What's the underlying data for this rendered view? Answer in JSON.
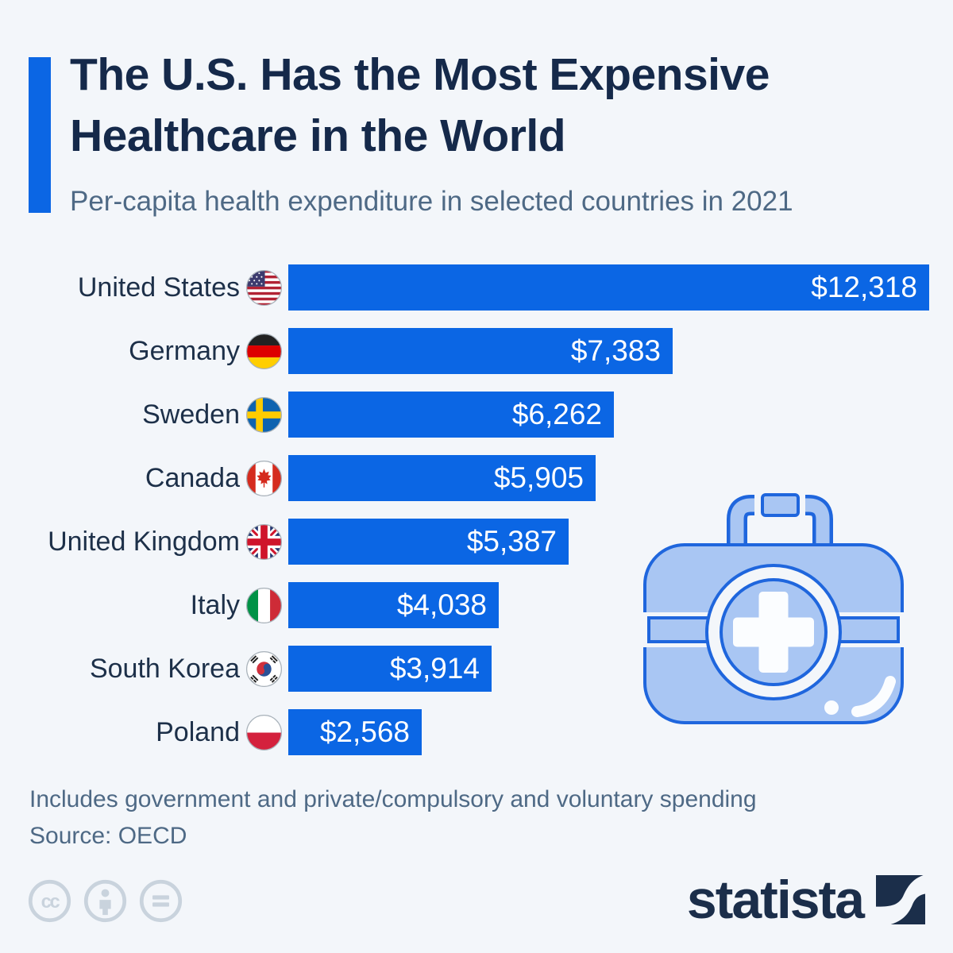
{
  "header": {
    "title": "The U.S. Has the Most Expensive Healthcare in the World",
    "subtitle": "Per-capita health expenditure in selected countries in 2021"
  },
  "chart_data": {
    "type": "bar",
    "orientation": "horizontal",
    "categories": [
      "United States",
      "Germany",
      "Sweden",
      "Canada",
      "United Kingdom",
      "Italy",
      "South Korea",
      "Poland"
    ],
    "values": [
      12318,
      7383,
      6262,
      5905,
      5387,
      4038,
      3914,
      2568
    ],
    "value_labels": [
      "$12,318",
      "$7,383",
      "$6,262",
      "$5,905",
      "$5,387",
      "$4,038",
      "$3,914",
      "$2,568"
    ],
    "flags": [
      "united-states",
      "germany",
      "sweden",
      "canada",
      "united-kingdom",
      "italy",
      "south-korea",
      "poland"
    ],
    "title": "Per-capita health expenditure in selected countries in 2021",
    "xlabel": "",
    "ylabel": "",
    "xlim": [
      0,
      12318
    ],
    "unit": "USD",
    "grid": false,
    "legend": false,
    "bar_color": "#0b66e4",
    "value_label_position": "inside-right"
  },
  "footer": {
    "note": "Includes government and private/compulsory and voluntary spending",
    "source": "Source: OECD"
  },
  "branding": {
    "logo_text": "statista",
    "license_icons": [
      "cc-icon",
      "attribution-icon",
      "equals-icon"
    ]
  },
  "colors": {
    "accent_blue": "#0b66e4",
    "title_navy": "#15294a",
    "subtitle_slate": "#4e6985",
    "background": "#f3f6fa",
    "logo_navy": "#1b2e4a",
    "illustration_fill": "#a9c6f3",
    "illustration_stroke": "#1f66dd"
  }
}
